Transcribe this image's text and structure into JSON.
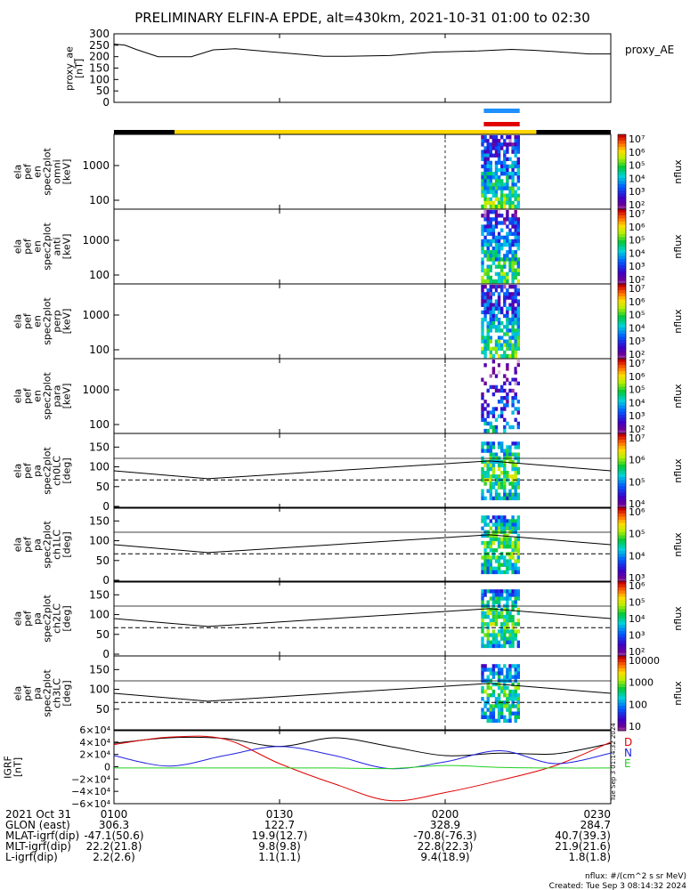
{
  "title": "PRELIMINARY ELFIN-A EPDE, alt=430km, 2021-10-31 01:00 to 02:30",
  "colors": {
    "blue_bar": "#1e90ff",
    "red_bar": "#e00000",
    "sun_bar": "#ffd700",
    "shadow_bar": "#000000",
    "grf_x": "#e00000",
    "grf_y": "#2020e0",
    "grf_z": "#20d020",
    "grf_total": "#000000"
  },
  "proxy_ae": {
    "ylabel_lines": [
      "proxy_ae",
      "[nT]"
    ],
    "legend": "proxy_AE",
    "yticks": [
      "300",
      "250",
      "200",
      "150",
      "100",
      "50",
      "0"
    ],
    "ylim": [
      0,
      300
    ],
    "times": [
      0,
      2,
      4,
      8,
      14,
      18,
      22,
      28,
      34,
      38,
      42,
      50,
      58,
      66,
      72,
      76,
      80,
      86,
      90
    ],
    "values": [
      255,
      250,
      232,
      200,
      200,
      230,
      235,
      222,
      210,
      202,
      202,
      205,
      220,
      225,
      232,
      228,
      222,
      212,
      212
    ]
  },
  "spectra": [
    {
      "name": "energy-omni",
      "ylabel_lines": [
        "ela",
        "pef",
        "en",
        "spec2plot",
        "omni",
        "[keV]"
      ],
      "yticks": [
        "1000",
        "100"
      ],
      "cbar_ticks": [
        "10⁷",
        "10⁶",
        "10⁵",
        "10⁴",
        "10³",
        "10²"
      ],
      "cbar_label": "nflux"
    },
    {
      "name": "energy-anti",
      "ylabel_lines": [
        "ela",
        "pef",
        "en",
        "spec2plot",
        "anti",
        "[keV]"
      ],
      "yticks": [
        "1000",
        "100"
      ],
      "cbar_ticks": [
        "10⁷",
        "10⁶",
        "10⁵",
        "10⁴",
        "10³",
        "10²"
      ],
      "cbar_label": "nflux"
    },
    {
      "name": "energy-perp",
      "ylabel_lines": [
        "ela",
        "pef",
        "en",
        "spec2plot",
        "perp",
        "[keV]"
      ],
      "yticks": [
        "1000",
        "100"
      ],
      "cbar_ticks": [
        "10⁷",
        "10⁶",
        "10⁵",
        "10⁴",
        "10³",
        "10²"
      ],
      "cbar_label": "nflux"
    },
    {
      "name": "energy-para",
      "ylabel_lines": [
        "ela",
        "pef",
        "en",
        "spec2plot",
        "para",
        "[keV]"
      ],
      "yticks": [
        "1000",
        "100"
      ],
      "cbar_ticks": [
        "10⁷",
        "10⁶",
        "10⁵",
        "10⁴",
        "10³",
        "10²"
      ],
      "cbar_label": "nflux"
    },
    {
      "name": "pa-ch0",
      "ylabel_lines": [
        "ela",
        "pef",
        "pa",
        "spec2plot",
        "ch0LC",
        "[deg]"
      ],
      "yticks": [
        "150",
        "100",
        "50",
        "0"
      ],
      "cbar_ticks": [
        "10⁷",
        "10⁶",
        "10⁵",
        "10⁴"
      ],
      "cbar_label": "nflux"
    },
    {
      "name": "pa-ch1",
      "ylabel_lines": [
        "ela",
        "pef",
        "pa",
        "spec2plot",
        "ch1LC",
        "[deg]"
      ],
      "yticks": [
        "150",
        "100",
        "50",
        "0"
      ],
      "cbar_ticks": [
        "10⁶",
        "10⁵",
        "10⁴",
        "10³"
      ],
      "cbar_label": "nflux"
    },
    {
      "name": "pa-ch2",
      "ylabel_lines": [
        "ela",
        "pef",
        "pa",
        "spec2plot",
        "ch2LC",
        "[deg]"
      ],
      "yticks": [
        "150",
        "100",
        "50",
        "0"
      ],
      "cbar_ticks": [
        "10⁶",
        "10⁵",
        "10⁴",
        "10³",
        "10²"
      ],
      "cbar_label": "nflux"
    },
    {
      "name": "pa-ch3",
      "ylabel_lines": [
        "ela",
        "pef",
        "pa",
        "spec2plot",
        "ch3LC",
        "[deg]"
      ],
      "yticks": [
        "150",
        "100",
        "50"
      ],
      "cbar_ticks": [
        "10000",
        "1000",
        "100",
        "10"
      ],
      "cbar_label": "nflux"
    }
  ],
  "grf": {
    "ylabel_lines": [
      "IGRF",
      "[nT]"
    ],
    "yticks": [
      "6×10⁴",
      "4×10⁴",
      "2×10⁴",
      "0",
      "−2×10⁴",
      "−4×10⁴",
      "−6×10⁴"
    ],
    "legend": [
      "D",
      "N",
      "E"
    ],
    "ylim": [
      -60000,
      60000
    ],
    "side_label": "Tue Sep  3 01:14:32 2024",
    "times": [
      0,
      10,
      20,
      30,
      40,
      50,
      60,
      70,
      80,
      90
    ],
    "series": [
      {
        "name": "total",
        "values": [
          38000,
          47000,
          46000,
          33000,
          47000,
          33000,
          18000,
          22000,
          21000,
          38000
        ]
      },
      {
        "name": "x",
        "values": [
          36000,
          48000,
          45000,
          5000,
          -28000,
          -55000,
          -42000,
          -22000,
          2000,
          40000
        ]
      },
      {
        "name": "y",
        "values": [
          18000,
          1000,
          18000,
          33000,
          18000,
          -3000,
          8000,
          26000,
          5000,
          22000
        ]
      },
      {
        "name": "z",
        "values": [
          -2000,
          -2000,
          -2000,
          -2000,
          -2000,
          -3000,
          2000,
          -1000,
          -2000,
          -2000
        ]
      }
    ]
  },
  "footer": {
    "rows": [
      {
        "label": "2021 Oct 31",
        "values": [
          "0100",
          "0130",
          "0200",
          "0230"
        ]
      },
      {
        "label": "GLON (east)",
        "values": [
          "306.3",
          "122.7",
          "328.9",
          "284.7"
        ]
      },
      {
        "label": "MLAT-igrf(dip)",
        "values": [
          "-47.1(50.6)",
          "19.9(12.7)",
          "-70.8(-76.3)",
          "40.7(39.3)"
        ]
      },
      {
        "label": "MLT-igrf(dip)",
        "values": [
          "22.2(21.8)",
          "9.8(9.8)",
          "22.8(22.3)",
          "21.9(21.6)"
        ]
      },
      {
        "label": "L-igrf(dip)",
        "values": [
          "2.2(2.6)",
          "1.1(1.1)",
          "9.4(18.9)",
          "1.8(1.8)"
        ]
      }
    ],
    "units_note": "nflux: #/(cm^2 s sr MeV)",
    "created": "Created: Tue Sep  3 08:14:32 2024"
  },
  "chart_data": {
    "type": "line",
    "title": "PRELIMINARY ELFIN-A EPDE, alt=430km, 2021-10-31 01:00 to 02:30",
    "x_unit": "minutes after 01:00 UT",
    "xlim": [
      0,
      90
    ],
    "x_ticks": [
      "0100",
      "0130",
      "0200",
      "0230"
    ],
    "panels": [
      "proxy_ae",
      "8 spectrogram panels (energy omni/anti/perp/para, pitch angle ch0LC-ch3LC)",
      "IGRF field"
    ],
    "science_zone_minutes": [
      67,
      73.5
    ],
    "sunlight_minutes": [
      11,
      76.5
    ],
    "shadow_minutes": [
      [
        0,
        11
      ],
      [
        76.5,
        90
      ]
    ],
    "pa_reference_lines_deg": {
      "solid": [
        90,
        115,
        90
      ],
      "dashed": 67
    }
  }
}
